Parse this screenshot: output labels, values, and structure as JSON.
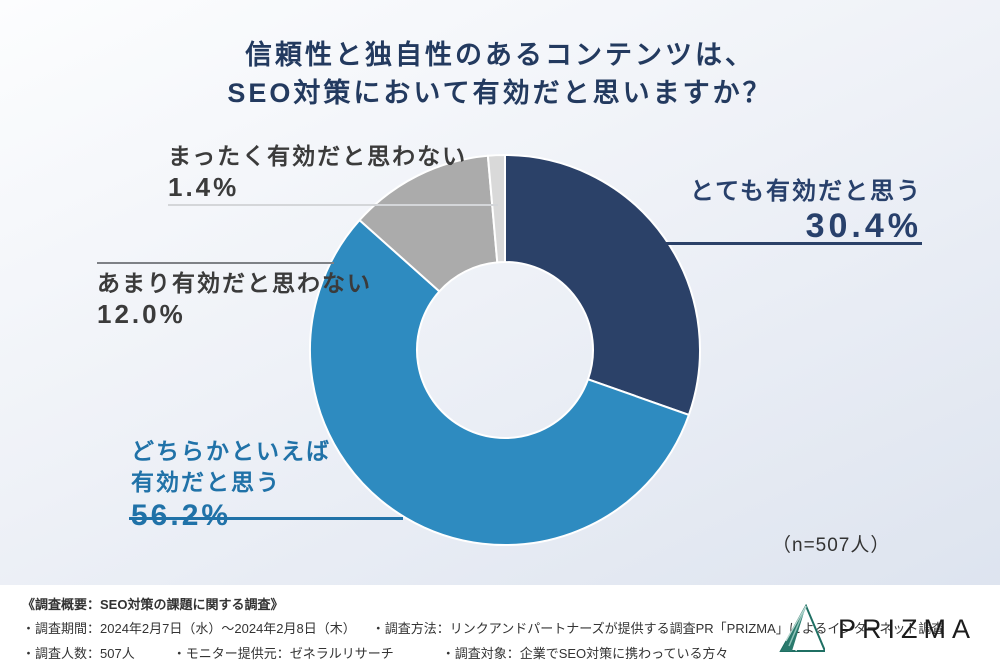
{
  "title": {
    "line1": "信頼性と独自性のあるコンテンツは、",
    "line2": "SEO対策において有効だと思いますか？"
  },
  "chart_data": {
    "type": "pie",
    "subtype": "donut",
    "title": "信頼性と独自性のあるコンテンツは、SEO対策において有効だと思いますか？",
    "n": 507,
    "total": 100,
    "start_angle_deg": 0,
    "direction": "clockwise",
    "segments": [
      {
        "label": "とても有効だと思う",
        "value": 30.4,
        "color": "#2b4168"
      },
      {
        "label": "どちらかといえば有効だと思う",
        "value": 56.2,
        "color": "#2e8bc0"
      },
      {
        "label": "あまり有効だと思わない",
        "value": 12.0,
        "color": "#ababab"
      },
      {
        "label": "まったく有効だと思わない",
        "value": 1.4,
        "color": "#d9d9d9"
      }
    ]
  },
  "callouts": {
    "totemo": {
      "label": "とても有効だと思う",
      "pct": "30.4%"
    },
    "dochira": {
      "label_line1": "どちらかといえば",
      "label_line2": "有効だと思う",
      "pct": "56.2%"
    },
    "amari": {
      "label": "あまり有効だと思わない",
      "pct": "12.0%"
    },
    "mattaku": {
      "label": "まったく有効だと思わない",
      "pct": "1.4%"
    }
  },
  "n_label": "（n=507人）",
  "footer": {
    "heading": "《調査概要：SEO対策の課題に関する調査》",
    "line2": [
      "・調査期間：2024年2月7日（水）〜2024年2月8日（木）",
      "・調査方法：リンクアンドパートナーズが提供する調査PR「PRIZMA」によるインターネット調査"
    ],
    "line3": [
      "・調査人数：507人",
      "・モニター提供元：ゼネラルリサーチ",
      "・調査対象：企業でSEO対策に携わっている方々"
    ],
    "logo_text": "PRIZMA"
  },
  "colors": {
    "title_navy": "#233a5f",
    "segment_navy": "#2b4168",
    "segment_blue": "#2e8bc0",
    "segment_gray": "#ababab",
    "segment_lightgray": "#d9d9d9",
    "dochira_text_blue": "#2072a8",
    "logo_teal": "#2a7a6d"
  }
}
